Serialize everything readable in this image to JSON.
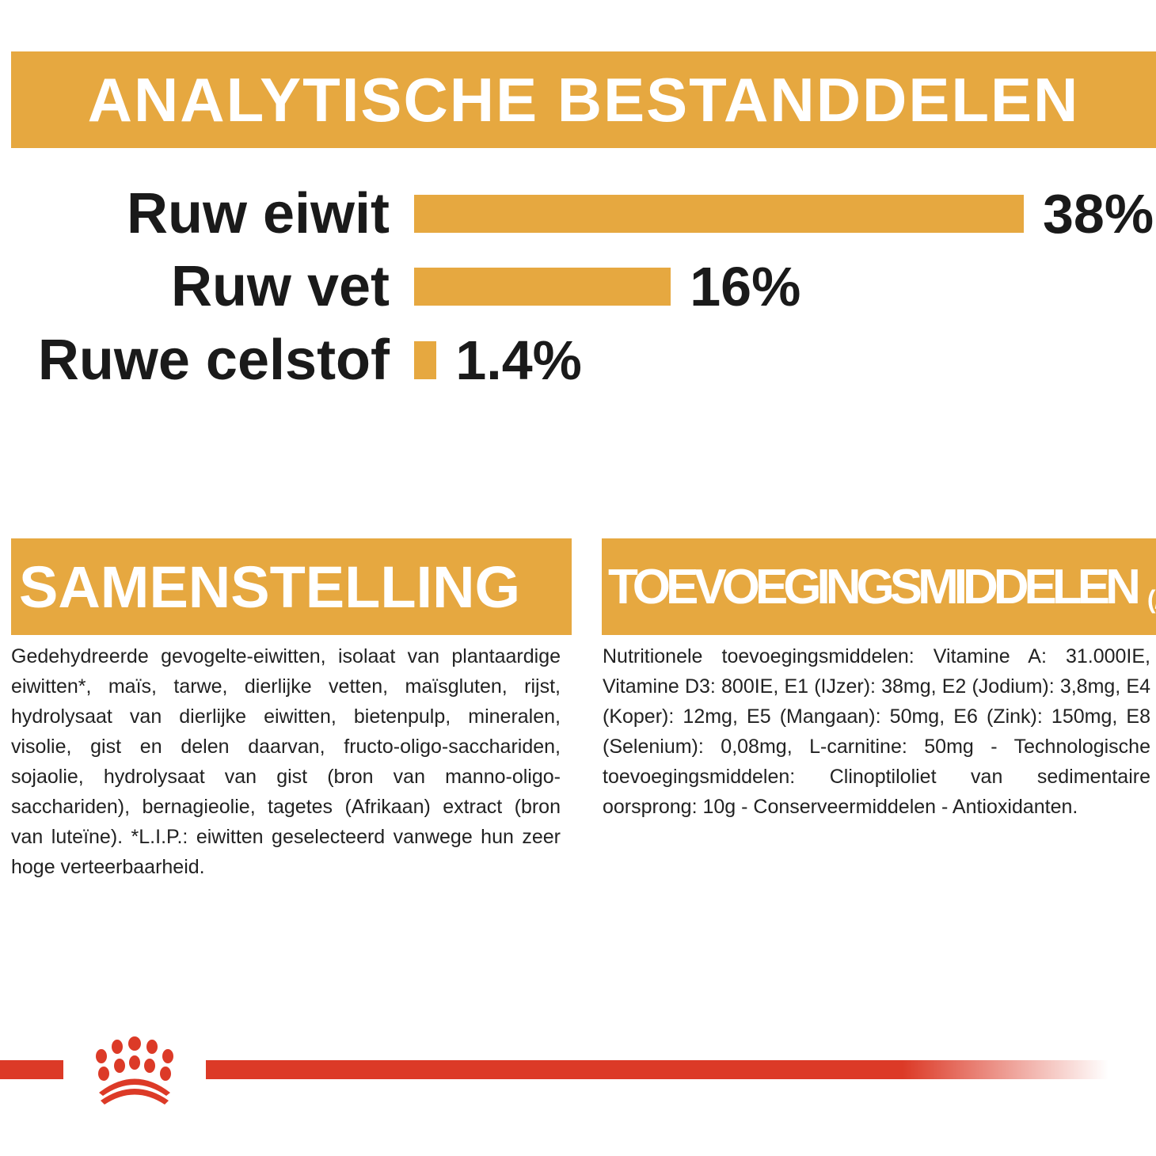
{
  "header": {
    "title": "ANALYTISCHE BESTANDDELEN"
  },
  "chart_data": {
    "type": "bar",
    "orientation": "horizontal",
    "categories": [
      "Ruw eiwit",
      "Ruw vet",
      "Ruwe celstof"
    ],
    "values": [
      38,
      16,
      1.4
    ],
    "value_labels": [
      "38%",
      "16%",
      "1.4%"
    ],
    "unit": "%",
    "bar_color": "#E6A840",
    "grid": false
  },
  "composition": {
    "title": "SAMENSTELLING",
    "text": "Gedehydreerde gevogelte-eiwitten, isolaat van plantaardige eiwitten*, maïs, tarwe, dierlijke vetten, maïsgluten, rijst, hydrolysaat van dierlijke eiwitten, bietenpulp, mineralen, visolie, gist en delen daarvan, fructo-oligo-sacchariden, sojaolie, hydrolysaat van gist (bron van manno-oligo-sacchariden), bernagieolie, tagetes (Afrikaan) extract (bron van luteïne). *L.I.P.: eiwitten geselecteerd vanwege hun zeer hoge verteerbaarheid."
  },
  "additives": {
    "title": "TOEVOEGINGSMIDDELEN",
    "unit": "(/kg)",
    "text": "Nutritionele toevoegingsmiddelen: Vitamine A: 31.000IE, Vitamine D3: 800IE, E1 (IJzer): 38mg, E2 (Jodium): 3,8mg, E4 (Koper): 12mg, E5 (Mangaan): 50mg, E6 (Zink): 150mg, E8 (Selenium): 0,08mg, L-carnitine: 50mg - Technologische toevoegingsmiddelen: Clinoptiloliet van sedimentaire oorsprong: 10g - Conserveermiddelen - Antioxidanten."
  },
  "colors": {
    "accent": "#E6A840",
    "brand_red": "#DC3A27"
  },
  "footer": {
    "logo": "royal-canin-crown-logo"
  }
}
